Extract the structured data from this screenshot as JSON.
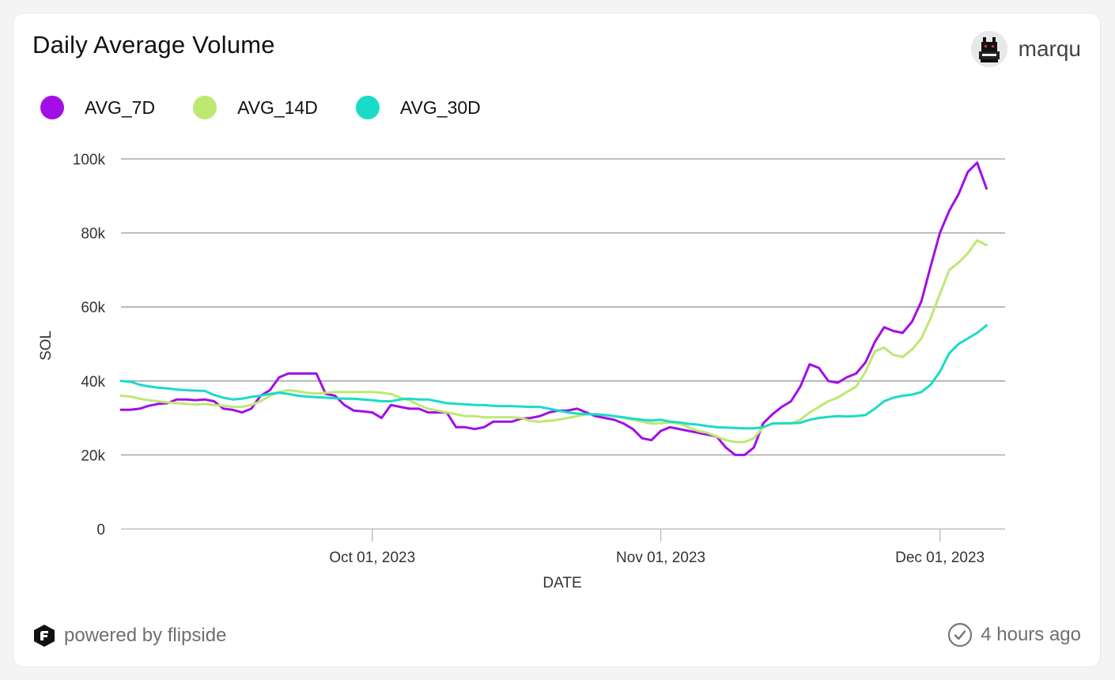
{
  "card": {
    "title": "Daily Average Volume",
    "user": "marqu",
    "avatar_icon": "pixel-cat-avatar-icon"
  },
  "footer": {
    "powered_by": "powered by flipside",
    "logo_icon": "flipside-logo-icon",
    "updated": "4 hours ago",
    "updated_icon": "check-circle-icon"
  },
  "colors": {
    "avg_7d": "#a20ee6",
    "avg_14d": "#bde872",
    "avg_30d": "#19dcc8",
    "grid": "#9a9a9a",
    "axis": "#b8b8b8"
  },
  "chart_data": {
    "type": "line",
    "title": "Daily Average Volume",
    "xlabel": "DATE",
    "ylabel": "SOL",
    "ylim": [
      0,
      100000
    ],
    "yticks": [
      0,
      20000,
      40000,
      60000,
      80000,
      100000
    ],
    "ytick_labels": [
      "0",
      "20k",
      "40k",
      "60k",
      "80k",
      "100k"
    ],
    "x_start": "2023-09-04",
    "x_end": "2023-12-08",
    "xticks": [
      {
        "date": "2023-10-01",
        "label": "Oct 01, 2023"
      },
      {
        "date": "2023-11-01",
        "label": "Nov 01, 2023"
      },
      {
        "date": "2023-12-01",
        "label": "Dec 01, 2023"
      }
    ],
    "grid": true,
    "legend": "top-left",
    "series": [
      {
        "name": "AVG_7D",
        "key": "avg_7d",
        "values": [
          32200,
          32200,
          32500,
          33300,
          33800,
          34000,
          35000,
          35000,
          34800,
          35000,
          34500,
          32500,
          32200,
          31500,
          32500,
          36000,
          37500,
          41000,
          42000,
          42000,
          42000,
          42000,
          36500,
          36000,
          33500,
          32000,
          31800,
          31500,
          30000,
          33500,
          33000,
          32500,
          32500,
          31500,
          31500,
          31500,
          27500,
          27500,
          27000,
          27500,
          29000,
          29000,
          29000,
          29800,
          30000,
          30500,
          31500,
          32000,
          32000,
          32500,
          31500,
          30500,
          30000,
          29500,
          28500,
          27000,
          24500,
          24000,
          26500,
          27500,
          27000,
          26500,
          26000,
          25500,
          25000,
          22000,
          20000,
          20000,
          22000,
          28500,
          31000,
          33000,
          34500,
          38500,
          44500,
          43500,
          40000,
          39500,
          41000,
          42000,
          45000,
          50500,
          54500,
          53500,
          53000,
          56000,
          61500,
          71000,
          80000,
          86000,
          90500,
          96500,
          99000,
          92000
        ]
      },
      {
        "name": "AVG_14D",
        "key": "avg_14d",
        "values": [
          36000,
          35800,
          35200,
          34800,
          34500,
          34200,
          34000,
          33800,
          33600,
          33800,
          33500,
          33300,
          33000,
          33000,
          33500,
          34500,
          36000,
          37000,
          37500,
          37200,
          36800,
          36600,
          36800,
          37000,
          37000,
          37000,
          37000,
          37000,
          36800,
          36500,
          35500,
          34800,
          33500,
          32500,
          32000,
          31500,
          31000,
          30500,
          30500,
          30200,
          30200,
          30200,
          30200,
          30000,
          29200,
          29000,
          29200,
          29500,
          30000,
          30500,
          31000,
          31000,
          30800,
          30500,
          30000,
          29500,
          29000,
          28500,
          28600,
          28800,
          28500,
          27500,
          26500,
          26000,
          25000,
          24000,
          23500,
          23500,
          24500,
          27500,
          28500,
          28500,
          28500,
          29500,
          31500,
          33000,
          34500,
          35500,
          37000,
          38500,
          42500,
          48000,
          49000,
          47000,
          46500,
          48500,
          51500,
          57000,
          63500,
          70000,
          72000,
          74500,
          78000,
          76700
        ]
      },
      {
        "name": "AVG_30D",
        "key": "avg_30d",
        "values": [
          40000,
          39800,
          39000,
          38500,
          38200,
          38000,
          37700,
          37500,
          37400,
          37300,
          36200,
          35500,
          35000,
          35200,
          35700,
          36000,
          36500,
          36800,
          36500,
          36000,
          35800,
          35600,
          35500,
          35300,
          35200,
          35200,
          35000,
          34800,
          34500,
          34500,
          35000,
          35200,
          35000,
          35000,
          34500,
          34000,
          33800,
          33700,
          33500,
          33500,
          33300,
          33200,
          33200,
          33100,
          33000,
          33000,
          32500,
          32000,
          31500,
          31200,
          31000,
          31000,
          30800,
          30500,
          30200,
          29800,
          29500,
          29300,
          29500,
          29000,
          28800,
          28400,
          28200,
          27800,
          27500,
          27400,
          27300,
          27200,
          27200,
          27500,
          28500,
          28600,
          28600,
          28700,
          29500,
          30000,
          30300,
          30500,
          30400,
          30500,
          30800,
          32500,
          34500,
          35500,
          36000,
          36300,
          37000,
          39000,
          42500,
          47500,
          50000,
          51500,
          53000,
          55000
        ]
      }
    ]
  }
}
